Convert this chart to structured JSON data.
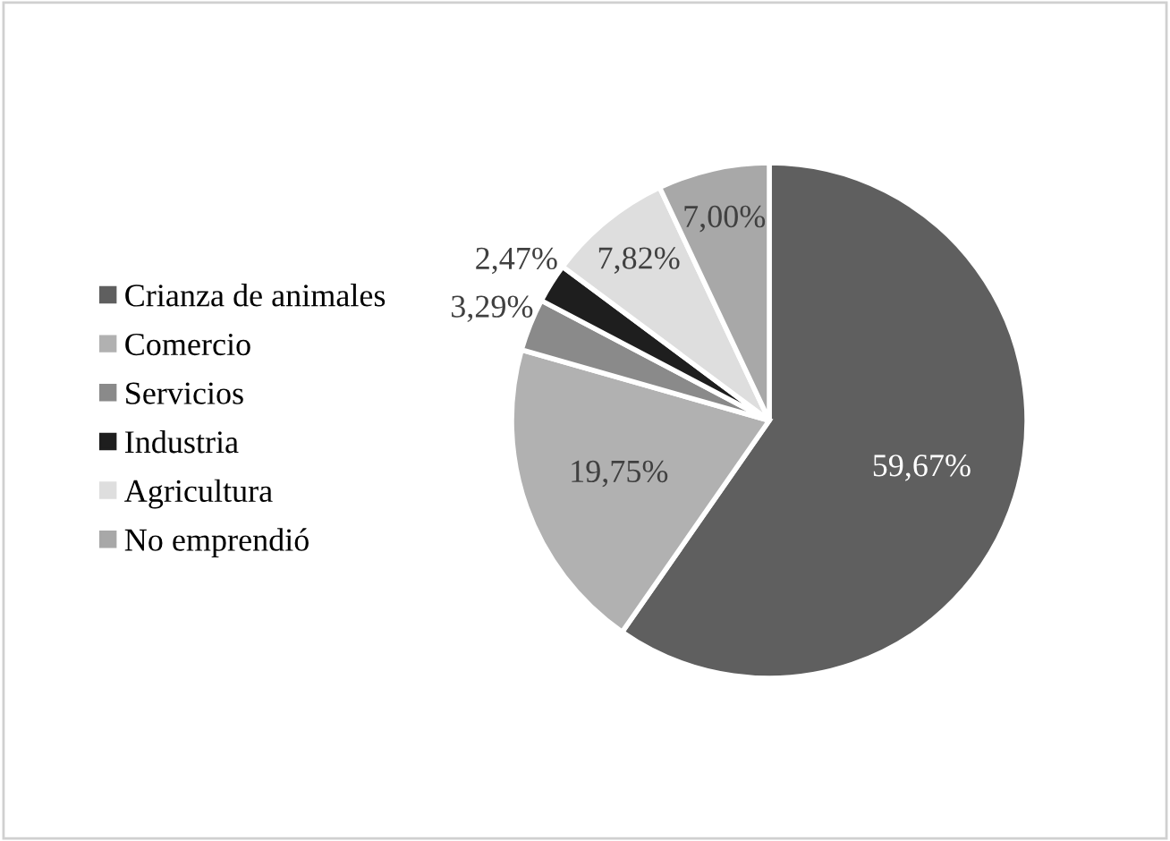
{
  "chart_data": {
    "type": "pie",
    "categories": [
      "Crianza de animales",
      "Comercio",
      "Servicios",
      "Industria",
      "Agricultura",
      "No emprendió"
    ],
    "values": [
      59.67,
      19.75,
      3.29,
      2.47,
      7.82,
      7.0
    ],
    "colors": [
      "#5f5f5f",
      "#b1b1b1",
      "#8a8a8a",
      "#1e1e1e",
      "#dedede",
      "#a8a8a8"
    ],
    "value_labels": [
      "59,67%",
      "19,75%",
      "3,29%",
      "2,47%",
      "7,82%",
      "7,00%"
    ],
    "legend": "left"
  }
}
